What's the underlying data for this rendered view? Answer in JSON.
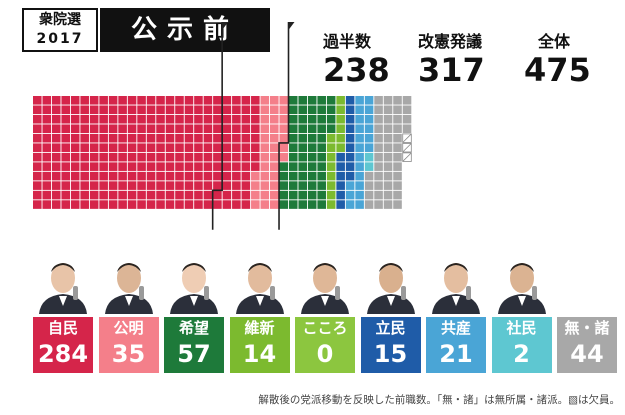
{
  "header": {
    "badge_line1": "衆院選",
    "badge_line2": "2017",
    "title": "公示前"
  },
  "stats": [
    {
      "label": "過半数",
      "value": "238"
    },
    {
      "label": "改憲発議",
      "value": "317"
    },
    {
      "label": "全体",
      "value": "475"
    }
  ],
  "chart_data": {
    "type": "waffle",
    "total_seats": 475,
    "thresholds": [
      238,
      317
    ],
    "series": [
      {
        "name": "自民",
        "value": 284,
        "color": "#d5254a"
      },
      {
        "name": "公明",
        "value": 35,
        "color": "#f47f8a"
      },
      {
        "name": "希望",
        "value": 57,
        "color": "#1e7a3a"
      },
      {
        "name": "維新",
        "value": 14,
        "color": "#7cba2f"
      },
      {
        "name": "こころ",
        "value": 0,
        "color": "#8cc63f"
      },
      {
        "name": "立民",
        "value": 15,
        "color": "#1f5ca8"
      },
      {
        "name": "共産",
        "value": 21,
        "color": "#4aa5d6"
      },
      {
        "name": "社民",
        "value": 2,
        "color": "#5ec7d1"
      },
      {
        "name": "無・諸",
        "value": 44,
        "color": "#a8a8a8"
      }
    ],
    "vacant": 3
  },
  "parties": [
    {
      "name": "自民",
      "value": "284",
      "color": "#d5254a"
    },
    {
      "name": "公明",
      "value": "35",
      "color": "#f47f8a"
    },
    {
      "name": "希望",
      "value": "57",
      "color": "#1e7a3a"
    },
    {
      "name": "維新",
      "value": "14",
      "color": "#7cba2f"
    },
    {
      "name": "こころ",
      "value": "0",
      "color": "#8cc63f"
    },
    {
      "name": "立民",
      "value": "15",
      "color": "#1f5ca8"
    },
    {
      "name": "共産",
      "value": "21",
      "color": "#4aa5d6"
    },
    {
      "name": "社民",
      "value": "2",
      "color": "#5ec7d1"
    },
    {
      "name": "無・諸",
      "value": "44",
      "color": "#a8a8a8"
    }
  ],
  "footnote": "解散後の党派移動を反映した前職数。「無・諸」は無所属・諸派。▧は欠員。"
}
